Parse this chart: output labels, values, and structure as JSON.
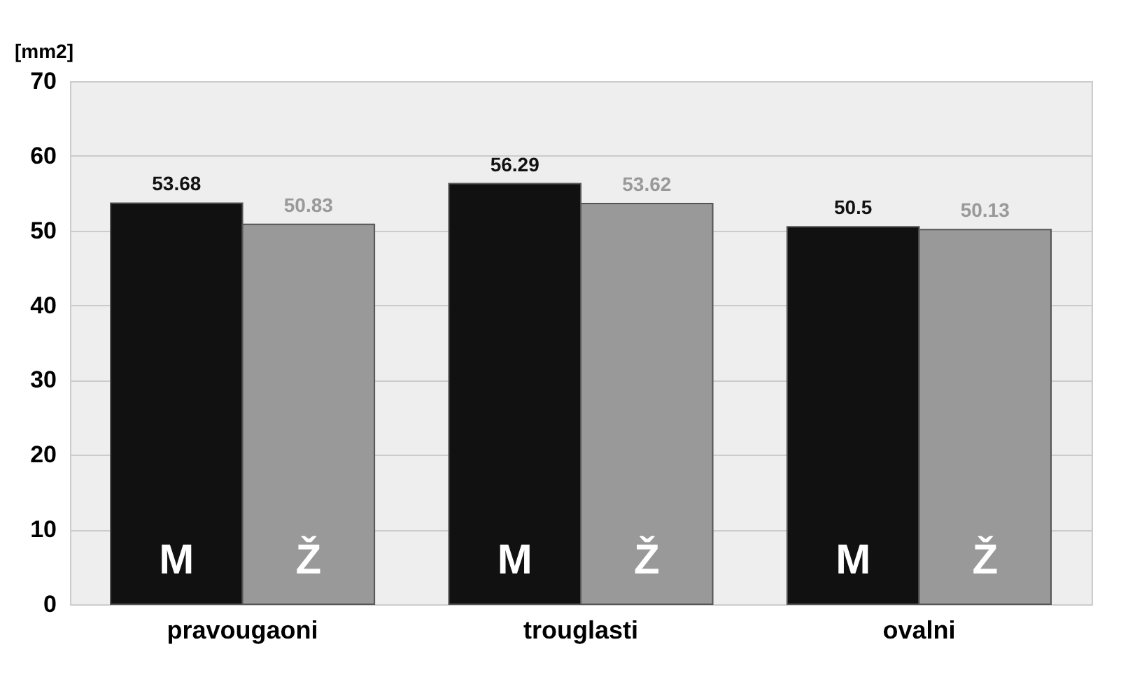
{
  "chart_data": {
    "type": "bar",
    "ylabel": "[mm2]",
    "categories": [
      "pravougaoni",
      "trouglasti",
      "ovalni"
    ],
    "series": [
      {
        "name": "M",
        "color": "#111111",
        "values": [
          53.68,
          56.29,
          50.5
        ]
      },
      {
        "name": "Ž",
        "color": "#999999",
        "values": [
          50.83,
          53.62,
          50.13
        ]
      }
    ],
    "ylim": [
      0,
      70
    ],
    "yticks": [
      0,
      10,
      20,
      30,
      40,
      50,
      60,
      70
    ],
    "grid": "y",
    "legend": false,
    "data_labels": true
  }
}
